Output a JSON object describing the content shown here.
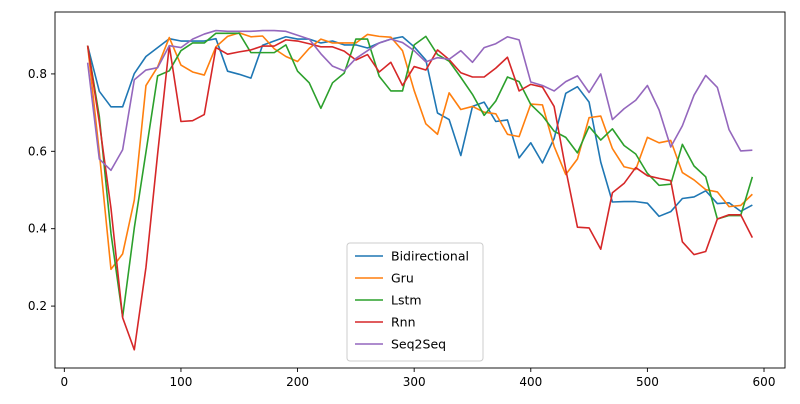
{
  "chart_data": {
    "type": "line",
    "title": "",
    "xlabel": "",
    "ylabel": "",
    "xlim": [
      -8,
      618
    ],
    "ylim": [
      0.04,
      0.96
    ],
    "x_ticks": [
      0,
      100,
      200,
      300,
      400,
      500,
      600
    ],
    "y_ticks": [
      0.2,
      0.4,
      0.6,
      0.8
    ],
    "grid": false,
    "legend_position": "lower center",
    "x": [
      20,
      30,
      40,
      50,
      60,
      70,
      80,
      90,
      100,
      110,
      120,
      130,
      140,
      150,
      160,
      170,
      180,
      190,
      200,
      210,
      220,
      230,
      240,
      250,
      260,
      270,
      280,
      290,
      300,
      310,
      320,
      330,
      340,
      350,
      360,
      370,
      380,
      390,
      400,
      410,
      420,
      430,
      440,
      450,
      460,
      470,
      480,
      490,
      500,
      510,
      520,
      530,
      540,
      550,
      560,
      570,
      580,
      590
    ],
    "series": [
      {
        "name": "Bidirectional",
        "color": "#1f77b4",
        "values": [
          0.873,
          0.755,
          0.715,
          0.715,
          0.801,
          0.845,
          0.868,
          0.891,
          0.885,
          0.885,
          0.885,
          0.891,
          0.807,
          0.799,
          0.789,
          0.874,
          0.885,
          0.896,
          0.89,
          0.89,
          0.88,
          0.885,
          0.875,
          0.875,
          0.867,
          0.88,
          0.89,
          0.896,
          0.87,
          0.836,
          0.699,
          0.682,
          0.589,
          0.716,
          0.727,
          0.677,
          0.681,
          0.583,
          0.622,
          0.57,
          0.633,
          0.75,
          0.767,
          0.727,
          0.572,
          0.469,
          0.47,
          0.47,
          0.466,
          0.432,
          0.444,
          0.478,
          0.482,
          0.498,
          0.465,
          0.467,
          0.445,
          0.461
        ]
      },
      {
        "name": "Gru",
        "color": "#ff7f0e",
        "values": [
          0.873,
          0.597,
          0.295,
          0.335,
          0.474,
          0.77,
          0.818,
          0.894,
          0.823,
          0.805,
          0.797,
          0.87,
          0.897,
          0.906,
          0.896,
          0.898,
          0.865,
          0.845,
          0.832,
          0.866,
          0.89,
          0.88,
          0.88,
          0.88,
          0.902,
          0.897,
          0.895,
          0.86,
          0.757,
          0.671,
          0.644,
          0.751,
          0.708,
          0.716,
          0.701,
          0.697,
          0.644,
          0.638,
          0.722,
          0.72,
          0.613,
          0.54,
          0.58,
          0.687,
          0.691,
          0.607,
          0.56,
          0.553,
          0.636,
          0.622,
          0.628,
          0.545,
          0.526,
          0.501,
          0.495,
          0.457,
          0.46,
          0.489
        ]
      },
      {
        "name": "Lstm",
        "color": "#2ca02c",
        "values": [
          0.873,
          0.69,
          0.388,
          0.172,
          0.402,
          0.598,
          0.795,
          0.808,
          0.86,
          0.88,
          0.88,
          0.905,
          0.905,
          0.905,
          0.855,
          0.855,
          0.855,
          0.875,
          0.807,
          0.777,
          0.711,
          0.777,
          0.802,
          0.89,
          0.89,
          0.794,
          0.756,
          0.756,
          0.875,
          0.897,
          0.85,
          0.833,
          0.791,
          0.747,
          0.693,
          0.73,
          0.792,
          0.78,
          0.721,
          0.692,
          0.652,
          0.636,
          0.596,
          0.664,
          0.629,
          0.658,
          0.615,
          0.593,
          0.543,
          0.512,
          0.515,
          0.618,
          0.562,
          0.534,
          0.425,
          0.434,
          0.434,
          0.534
        ]
      },
      {
        "name": "Rnn",
        "color": "#d62728",
        "values": [
          0.873,
          0.675,
          0.453,
          0.17,
          0.087,
          0.3,
          0.593,
          0.873,
          0.677,
          0.679,
          0.695,
          0.868,
          0.851,
          0.857,
          0.862,
          0.872,
          0.872,
          0.888,
          0.885,
          0.878,
          0.87,
          0.87,
          0.859,
          0.836,
          0.85,
          0.805,
          0.83,
          0.77,
          0.819,
          0.81,
          0.862,
          0.837,
          0.803,
          0.792,
          0.792,
          0.815,
          0.843,
          0.756,
          0.773,
          0.766,
          0.716,
          0.553,
          0.404,
          0.402,
          0.347,
          0.493,
          0.517,
          0.558,
          0.537,
          0.53,
          0.524,
          0.366,
          0.333,
          0.341,
          0.425,
          0.436,
          0.436,
          0.377
        ]
      },
      {
        "name": "Seq2Seq",
        "color": "#9467bd",
        "values": [
          0.829,
          0.58,
          0.551,
          0.604,
          0.785,
          0.81,
          0.816,
          0.873,
          0.868,
          0.89,
          0.903,
          0.912,
          0.91,
          0.91,
          0.91,
          0.912,
          0.912,
          0.91,
          0.9,
          0.89,
          0.852,
          0.82,
          0.808,
          0.84,
          0.86,
          0.88,
          0.89,
          0.881,
          0.86,
          0.831,
          0.842,
          0.838,
          0.86,
          0.83,
          0.868,
          0.878,
          0.896,
          0.888,
          0.779,
          0.77,
          0.756,
          0.78,
          0.795,
          0.752,
          0.8,
          0.682,
          0.71,
          0.732,
          0.77,
          0.707,
          0.611,
          0.666,
          0.745,
          0.796,
          0.765,
          0.656,
          0.601,
          0.603
        ]
      }
    ]
  }
}
